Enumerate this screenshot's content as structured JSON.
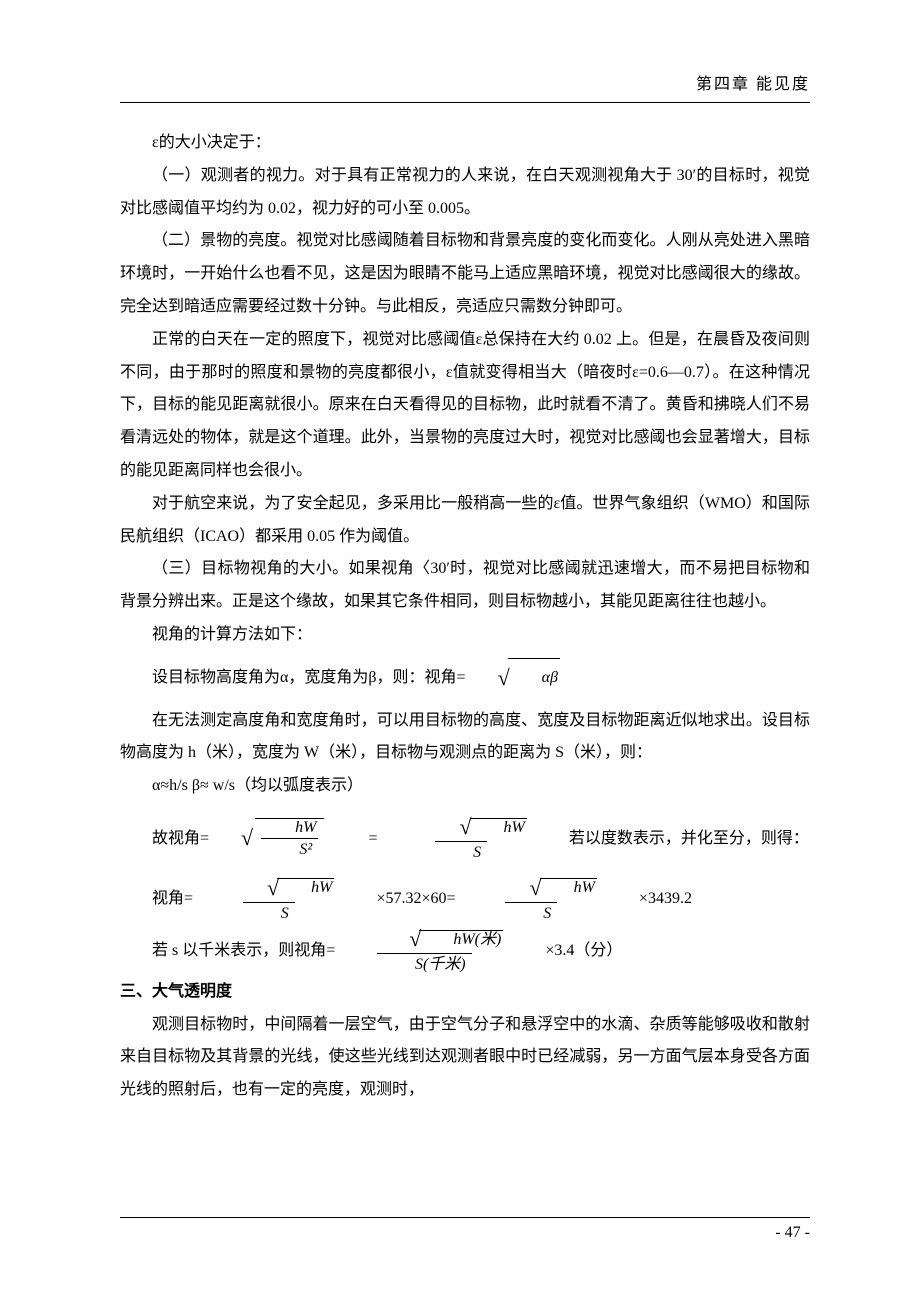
{
  "header": "第四章   能见度",
  "p1": "ε的大小决定于：",
  "p2": "（一）观测者的视力。对于具有正常视力的人来说，在白天观测视角大于 30′的目标时，视觉对比感阈值平均约为 0.02，视力好的可小至 0.005。",
  "p3": "（二）景物的亮度。视觉对比感阈随着目标物和背景亮度的变化而变化。人刚从亮处进入黑暗环境时，一开始什么也看不见，这是因为眼睛不能马上适应黑暗环境，视觉对比感阈很大的缘故。完全达到暗适应需要经过数十分钟。与此相反，亮适应只需数分钟即可。",
  "p4": "正常的白天在一定的照度下，视觉对比感阈值ε总保持在大约 0.02 上。但是，在晨昏及夜间则不同，由于那时的照度和景物的亮度都很小，ε值就变得相当大（暗夜时ε=0.6—0.7）。在这种情况下，目标的能见距离就很小。原来在白天看得见的目标物，此时就看不清了。黄昏和拂晓人们不易看清远处的物体，就是这个道理。此外，当景物的亮度过大时，视觉对比感阈也会显著增大，目标的能见距离同样也会很小。",
  "p5": "对于航空来说，为了安全起见，多采用比一般稍高一些的ε值。世界气象组织（WMO）和国际民航组织（ICAO）都采用 0.05 作为阈值。",
  "p6": "（三）目标物视角的大小。如果视角〈30′时，视觉对比感阈就迅速增大，而不易把目标物和背景分辨出来。正是这个缘故，如果其它条件相同，则目标物越小，其能见距离往往也越小。",
  "p7": "视角的计算方法如下：",
  "p8a": "设目标物高度角为α，宽度角为β，则：视角=",
  "formula_sqrt_ab": "αβ",
  "p9": "在无法测定高度角和宽度角时，可以用目标物的高度、宽度及目标物距离近似地求出。设目标物高度为 h（米），宽度为 W（米），目标物与观测点的距离为 S（米），则：",
  "p10": "α≈h/s   β≈ w/s（均以弧度表示）",
  "p11_pre": "故视角=",
  "hw": "hW",
  "s2": "S²",
  "s1": "S",
  "eq": "=",
  "p11_post": "   若以度数表示，并化至分，则得：",
  "p12_pre": "视角=",
  "p12_mid": " ×57.32×60= ",
  "p12_post": " ×3439.2",
  "p13_pre": "若 s 以千米表示，则视角=",
  "hw_m": "hW(米)",
  "s_km": "S(千米)",
  "p13_post": " ×3.4（分）",
  "sec3": "三、大气透明度",
  "p14": "观测目标物时，中间隔着一层空气，由于空气分子和悬浮空中的水滴、杂质等能够吸收和散射来自目标物及其背景的光线，使这些光线到达观测者眼中时已经减弱，另一方面气层本身受各方面光线的照射后，也有一定的亮度，观测时，",
  "pagenum": "- 47 -"
}
